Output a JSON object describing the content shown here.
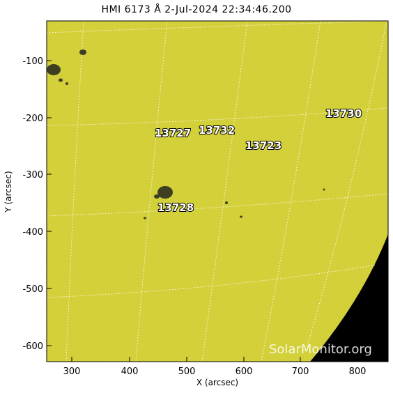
{
  "title": "HMI 6173 Å  2-Jul-2024 22:34:46.200",
  "xaxis": {
    "label": "X (arcsec)",
    "ticks": [
      300,
      400,
      500,
      600,
      700,
      800
    ]
  },
  "yaxis": {
    "label": "Y (arcsec)",
    "ticks": [
      -100,
      -200,
      -300,
      -400,
      -500,
      -600
    ]
  },
  "regions": [
    {
      "number": "13727"
    },
    {
      "number": "13732"
    },
    {
      "number": "13723"
    },
    {
      "number": "13730"
    },
    {
      "number": "13728"
    }
  ],
  "watermark": "SolarMonitor.org",
  "colors": {
    "disk": "#d9d63a",
    "space": "#000000",
    "grid": "#ffffff",
    "spot": "#3e3e22"
  }
}
